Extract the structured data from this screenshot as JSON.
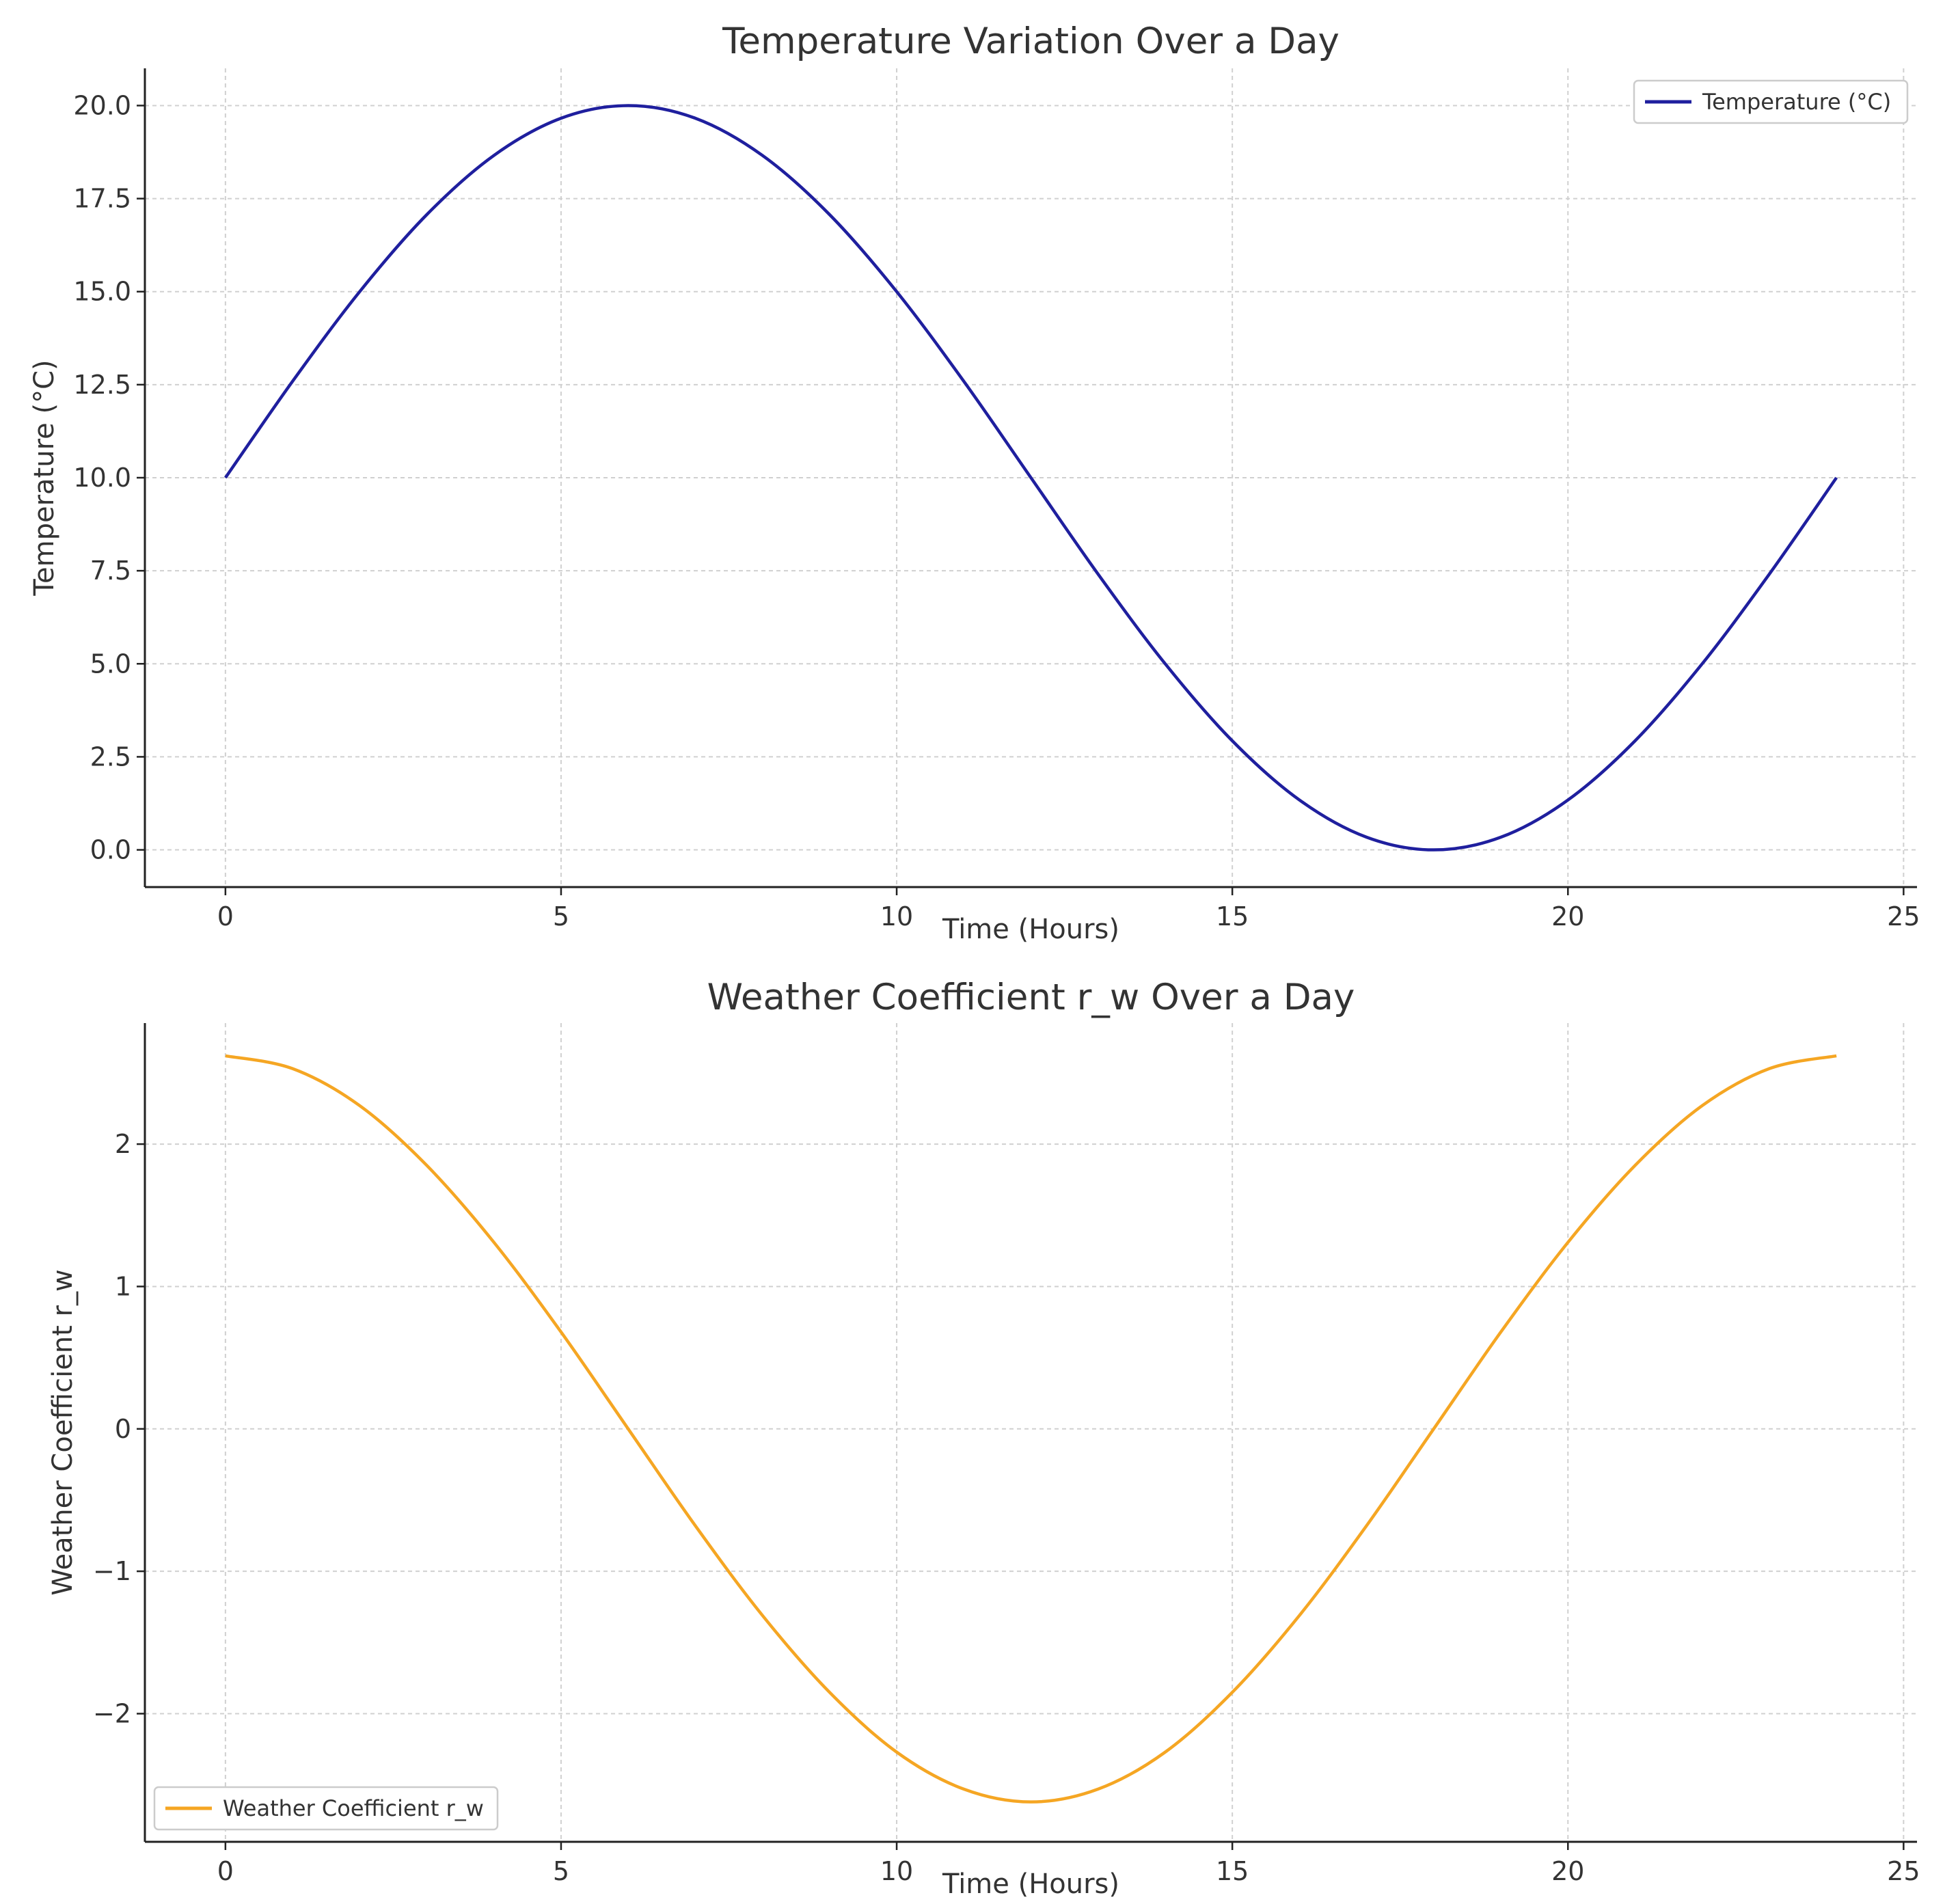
{
  "chart_data": [
    {
      "type": "line",
      "title": "Temperature Variation Over a Day",
      "xlabel": "Time (Hours)",
      "ylabel": "Temperature (°C)",
      "xlim": [
        -1.2,
        25.2
      ],
      "ylim": [
        -1.0,
        21.0
      ],
      "xticks": [
        0,
        5,
        10,
        15,
        20,
        25
      ],
      "xtick_labels": [
        "0",
        "5",
        "10",
        "15",
        "20",
        "25"
      ],
      "yticks": [
        0,
        2.5,
        5,
        7.5,
        10,
        12.5,
        15,
        17.5,
        20
      ],
      "ytick_labels": [
        "0.0",
        "2.5",
        "5.0",
        "7.5",
        "10.0",
        "12.5",
        "15.0",
        "17.5",
        "20.0"
      ],
      "grid": true,
      "legend_position": "upper right",
      "series": [
        {
          "name": "Temperature (°C)",
          "color": "#1f1f9e",
          "x": [
            0,
            1,
            2,
            3,
            4,
            5,
            6,
            7,
            8,
            9,
            10,
            11,
            12,
            13,
            14,
            15,
            16,
            17,
            18,
            19,
            20,
            21,
            22,
            23,
            24
          ],
          "y": [
            10.0,
            12.59,
            15.0,
            17.07,
            18.66,
            19.66,
            20.0,
            19.66,
            18.66,
            17.07,
            15.0,
            12.59,
            10.0,
            7.41,
            5.0,
            2.93,
            1.34,
            0.34,
            0.0,
            0.34,
            1.34,
            2.93,
            5.0,
            7.41,
            10.0
          ]
        }
      ]
    },
    {
      "type": "line",
      "title": "Weather Coefficient r_w Over a Day",
      "xlabel": "Time (Hours)",
      "ylabel": "Weather Coefficient r_w",
      "xlim": [
        -1.2,
        25.2
      ],
      "ylim": [
        -2.9,
        2.85
      ],
      "xticks": [
        0,
        5,
        10,
        15,
        20,
        25
      ],
      "xtick_labels": [
        "0",
        "5",
        "10",
        "15",
        "20",
        "25"
      ],
      "yticks": [
        -2,
        -1,
        0,
        1,
        2
      ],
      "ytick_labels": [
        "−2",
        "−1",
        "0",
        "1",
        "2"
      ],
      "grid": true,
      "legend_position": "lower left",
      "series": [
        {
          "name": "Weather Coefficient r_w",
          "color": "#f5a623",
          "x": [
            0,
            1,
            2,
            3,
            4,
            5,
            6,
            7,
            8,
            9,
            10,
            11,
            12,
            13,
            14,
            15,
            16,
            17,
            18,
            19,
            20,
            21,
            22,
            23,
            24
          ],
          "y": [
            2.62,
            2.53,
            2.27,
            1.85,
            1.31,
            0.68,
            0.0,
            -0.68,
            -1.31,
            -1.85,
            -2.27,
            -2.53,
            -2.62,
            -2.53,
            -2.27,
            -1.85,
            -1.31,
            -0.68,
            0.0,
            0.68,
            1.31,
            1.85,
            2.27,
            2.53,
            2.62
          ]
        }
      ]
    }
  ]
}
